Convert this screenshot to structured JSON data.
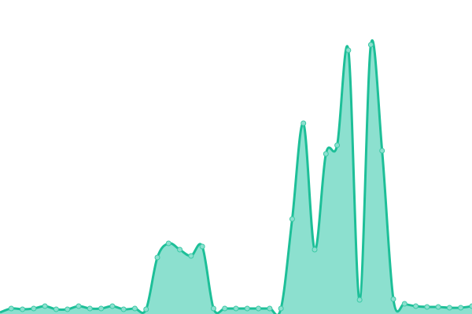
{
  "chart_data": {
    "type": "area",
    "smooth": true,
    "markers": true,
    "grid": false,
    "axes_visible": false,
    "legend": "none",
    "ylim": [
      0,
      400
    ],
    "x": [
      0,
      1,
      2,
      3,
      4,
      5,
      6,
      7,
      8,
      9,
      10,
      11,
      12,
      13,
      14,
      15,
      16,
      17,
      18,
      19,
      20,
      21,
      22,
      23,
      24,
      25,
      26,
      27,
      28,
      29,
      30,
      31,
      32,
      33,
      34,
      35,
      36,
      37,
      38,
      39,
      40,
      41,
      42
    ],
    "values": [
      2,
      7,
      6,
      7,
      10,
      6,
      6,
      10,
      7,
      7,
      10,
      6,
      7,
      6,
      72,
      90,
      82,
      74,
      86,
      7,
      7,
      7,
      7,
      7,
      7,
      7,
      121,
      243,
      82,
      204,
      215,
      336,
      18,
      343,
      208,
      19,
      13,
      10,
      9,
      9,
      8,
      8,
      10
    ],
    "colors": {
      "line": "#1dbf98",
      "fill": "#8ce0cf",
      "marker_fill": "#8ce0cf",
      "marker_stroke": "#3cc9a6"
    }
  }
}
